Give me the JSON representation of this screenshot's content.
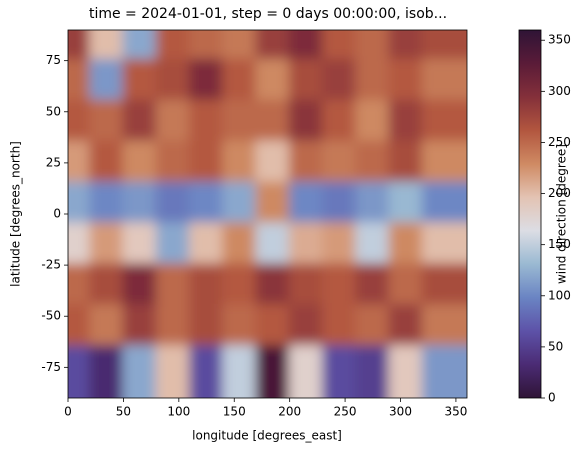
{
  "chart_data": {
    "type": "heatmap",
    "title": "time = 2024-01-01, step = 0 days 00:00:00, isob...",
    "xlabel": "longitude [degrees_east]",
    "ylabel": "latitude [degrees_north]",
    "colorbar_label": "wind direction [degree]",
    "x": [
      15,
      45,
      75,
      105,
      135,
      165,
      195,
      225,
      255,
      285,
      315,
      345
    ],
    "y": [
      80,
      60,
      40,
      20,
      0,
      -20,
      -40,
      -60,
      -80
    ],
    "z": [
      [
        280,
        200,
        120,
        260,
        250,
        240,
        280,
        300,
        260,
        250,
        280,
        270
      ],
      [
        250,
        110,
        260,
        270,
        300,
        260,
        230,
        270,
        280,
        250,
        260,
        240
      ],
      [
        260,
        250,
        280,
        240,
        260,
        250,
        250,
        290,
        260,
        230,
        280,
        260
      ],
      [
        220,
        260,
        230,
        250,
        260,
        230,
        200,
        250,
        240,
        250,
        270,
        230
      ],
      [
        120,
        100,
        110,
        90,
        100,
        120,
        230,
        100,
        90,
        110,
        130,
        100
      ],
      [
        180,
        220,
        190,
        120,
        200,
        230,
        150,
        210,
        220,
        150,
        230,
        200
      ],
      [
        250,
        270,
        300,
        250,
        270,
        260,
        290,
        270,
        260,
        280,
        250,
        270
      ],
      [
        260,
        240,
        280,
        250,
        270,
        250,
        260,
        280,
        260,
        250,
        280,
        240
      ],
      [
        60,
        30,
        120,
        200,
        60,
        150,
        340,
        180,
        60,
        50,
        190,
        110
      ]
    ],
    "xlim": [
      0,
      360
    ],
    "xticks": [
      0,
      50,
      100,
      150,
      200,
      250,
      300,
      350
    ],
    "ylim": [
      -90,
      90
    ],
    "yticks": [
      -75,
      -50,
      -25,
      0,
      25,
      50,
      75
    ],
    "clim": [
      0,
      360
    ],
    "cticks": [
      0,
      50,
      100,
      150,
      200,
      250,
      300,
      350
    ],
    "colormap": [
      "#2f1436",
      "#4b2b74",
      "#5d52a8",
      "#6a84c3",
      "#9ab9d2",
      "#dcdde4",
      "#e3c3b3",
      "#cf8a63",
      "#b2563f",
      "#84303a",
      "#5a1b38",
      "#2f1436"
    ]
  }
}
